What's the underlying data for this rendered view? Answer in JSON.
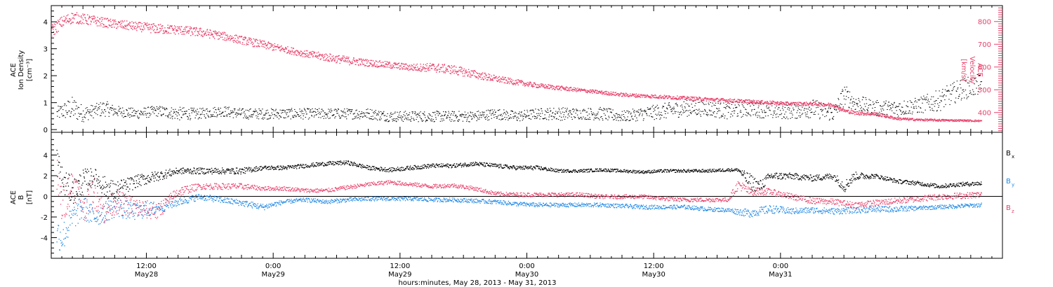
{
  "colors": {
    "axis": "#000000",
    "density": "#000000",
    "velocity": "#e8406a",
    "bx": "#000000",
    "by": "#1e88e5",
    "bz": "#e8406a"
  },
  "chart_data": [
    {
      "type": "scatter",
      "panel": "top",
      "ylabel_left": [
        "ACE",
        "Ion Density",
        "[cm⁻³]"
      ],
      "ylabel_right": [
        "ACE",
        "Velocity",
        "[km/s]"
      ],
      "y_left_ticks": [
        "0",
        "1",
        "2",
        "3",
        "4"
      ],
      "y_left_range": [
        -0.1,
        4.6
      ],
      "y_right_ticks": [
        "400",
        "500",
        "600",
        "700",
        "800"
      ],
      "y_right_range": [
        313,
        870
      ],
      "x_range_hours": [
        0,
        90
      ],
      "series": [
        {
          "name": "Ion Density",
          "axis": "left",
          "color": "#000000",
          "x": [
            0.5,
            1,
            2,
            3,
            4,
            5,
            6,
            8,
            10,
            12,
            14,
            16,
            18,
            20,
            22,
            24,
            26,
            28,
            30,
            32,
            34,
            36,
            38,
            40,
            42,
            44,
            46,
            48,
            50,
            52,
            54,
            56,
            58,
            60,
            62,
            64,
            66,
            68,
            70,
            72,
            74,
            75,
            76,
            78,
            80,
            82,
            84,
            86,
            88
          ],
          "y": [
            0.6,
            0.7,
            0.8,
            0.6,
            0.7,
            0.8,
            0.7,
            0.6,
            0.7,
            0.6,
            0.6,
            0.7,
            0.6,
            0.6,
            0.6,
            0.6,
            0.6,
            0.6,
            0.6,
            0.5,
            0.5,
            0.5,
            0.5,
            0.5,
            0.6,
            0.5,
            0.6,
            0.6,
            0.6,
            0.6,
            0.5,
            0.6,
            0.7,
            0.8,
            0.8,
            0.7,
            0.8,
            0.7,
            0.7,
            0.8,
            0.6,
            1.3,
            1.0,
            0.8,
            0.8,
            0.9,
            1.1,
            1.5,
            1.7
          ],
          "spread": [
            0.25,
            0.3,
            0.45,
            0.3,
            0.25,
            0.3,
            0.2,
            0.2,
            0.2,
            0.25,
            0.2,
            0.2,
            0.2,
            0.2,
            0.2,
            0.2,
            0.2,
            0.2,
            0.2,
            0.2,
            0.2,
            0.2,
            0.2,
            0.2,
            0.2,
            0.2,
            0.2,
            0.25,
            0.2,
            0.25,
            0.2,
            0.25,
            0.3,
            0.3,
            0.3,
            0.3,
            0.3,
            0.3,
            0.3,
            0.35,
            0.3,
            0.4,
            0.3,
            0.3,
            0.3,
            0.3,
            0.4,
            0.4,
            0.4
          ]
        },
        {
          "name": "Velocity",
          "axis": "right",
          "color": "#e8406a",
          "x": [
            0,
            1,
            2,
            4,
            6,
            8,
            10,
            12,
            14,
            16,
            18,
            20,
            22,
            24,
            26,
            28,
            30,
            32,
            34,
            36,
            38,
            40,
            42,
            44,
            46,
            48,
            50,
            52,
            54,
            56,
            58,
            60,
            62,
            64,
            66,
            68,
            70,
            72,
            74,
            75,
            76,
            78,
            80,
            82,
            84,
            86,
            88
          ],
          "y": [
            760,
            800,
            820,
            805,
            790,
            780,
            770,
            765,
            755,
            740,
            720,
            700,
            680,
            660,
            645,
            630,
            620,
            610,
            600,
            600,
            590,
            570,
            550,
            535,
            520,
            510,
            500,
            490,
            480,
            475,
            470,
            465,
            460,
            455,
            450,
            445,
            440,
            440,
            435,
            410,
            400,
            395,
            375,
            370,
            368,
            367,
            365
          ],
          "spread": [
            30,
            25,
            25,
            22,
            20,
            20,
            22,
            20,
            20,
            18,
            18,
            18,
            15,
            15,
            18,
            18,
            15,
            15,
            15,
            20,
            20,
            18,
            15,
            12,
            10,
            10,
            8,
            8,
            8,
            8,
            8,
            8,
            8,
            8,
            8,
            8,
            8,
            8,
            8,
            8,
            8,
            8,
            6,
            5,
            5,
            4,
            4
          ]
        }
      ]
    },
    {
      "type": "scatter",
      "panel": "bottom",
      "ylabel": [
        "ACE",
        "B",
        "[nT]"
      ],
      "y_ticks": [
        "-4",
        "-2",
        "0",
        "2",
        "4"
      ],
      "y_range": [
        -6.0,
        6.2
      ],
      "x_range_hours": [
        0,
        90
      ],
      "zero_line": true,
      "legend": [
        "Bx",
        "By",
        "Bz"
      ],
      "series": [
        {
          "name": "Bx",
          "color": "#000000",
          "x": [
            0.5,
            1,
            2,
            3,
            4,
            5,
            6,
            8,
            10,
            12,
            14,
            16,
            18,
            20,
            22,
            24,
            26,
            28,
            30,
            32,
            34,
            36,
            38,
            40,
            42,
            44,
            46,
            48,
            50,
            52,
            54,
            56,
            58,
            60,
            62,
            64,
            65,
            66,
            67,
            68,
            70,
            72,
            74,
            75,
            76,
            78,
            80,
            82,
            84,
            86,
            88
          ],
          "y": [
            3.5,
            1.5,
            0.5,
            1.5,
            2.0,
            1.0,
            0.5,
            1.5,
            2.0,
            2.5,
            2.5,
            2.5,
            2.5,
            2.8,
            2.8,
            3.0,
            3.2,
            3.3,
            2.8,
            2.6,
            2.8,
            3.0,
            3.0,
            3.2,
            3.0,
            2.8,
            2.8,
            2.5,
            2.5,
            2.6,
            2.5,
            2.4,
            2.5,
            2.5,
            2.5,
            2.6,
            2.6,
            1.5,
            1.0,
            2.0,
            2.0,
            1.8,
            2.0,
            1.0,
            2.0,
            2.0,
            1.5,
            1.3,
            1.0,
            1.2,
            1.3
          ],
          "spread": [
            1.5,
            1.5,
            1.2,
            1.2,
            0.8,
            1.0,
            1.0,
            0.6,
            0.5,
            0.3,
            0.3,
            0.3,
            0.3,
            0.2,
            0.2,
            0.2,
            0.2,
            0.2,
            0.2,
            0.2,
            0.2,
            0.2,
            0.2,
            0.2,
            0.2,
            0.2,
            0.2,
            0.15,
            0.15,
            0.15,
            0.15,
            0.15,
            0.15,
            0.15,
            0.15,
            0.15,
            0.15,
            0.8,
            0.6,
            0.4,
            0.3,
            0.3,
            0.3,
            0.6,
            0.4,
            0.2,
            0.2,
            0.2,
            0.2,
            0.2,
            0.2
          ]
        },
        {
          "name": "By",
          "color": "#1e88e5",
          "x": [
            0.5,
            1,
            2,
            3,
            4,
            5,
            6,
            8,
            10,
            12,
            14,
            16,
            18,
            20,
            22,
            24,
            26,
            28,
            30,
            32,
            34,
            36,
            38,
            40,
            42,
            44,
            46,
            48,
            50,
            52,
            54,
            56,
            58,
            60,
            62,
            64,
            66,
            68,
            70,
            72,
            74,
            76,
            78,
            80,
            82,
            84,
            86,
            88
          ],
          "y": [
            -3.5,
            -4.0,
            -2.0,
            -1.0,
            -2.0,
            -1.5,
            -1.0,
            -1.5,
            -1.0,
            -0.5,
            0.0,
            -0.3,
            -0.6,
            -1.0,
            -0.5,
            -0.3,
            -0.5,
            -0.3,
            -0.2,
            -0.2,
            -0.2,
            -0.3,
            -0.3,
            -0.4,
            -0.5,
            -0.7,
            -0.8,
            -0.8,
            -0.8,
            -0.8,
            -0.9,
            -1.0,
            -1.0,
            -1.0,
            -1.2,
            -1.3,
            -1.6,
            -1.2,
            -1.4,
            -1.3,
            -1.4,
            -1.3,
            -1.2,
            -1.2,
            -1.1,
            -1.0,
            -0.9,
            -0.8
          ],
          "spread": [
            1.5,
            1.5,
            1.2,
            1.2,
            1.0,
            1.0,
            1.0,
            0.8,
            0.6,
            0.4,
            0.3,
            0.3,
            0.3,
            0.3,
            0.2,
            0.2,
            0.2,
            0.2,
            0.2,
            0.2,
            0.2,
            0.2,
            0.2,
            0.2,
            0.2,
            0.2,
            0.2,
            0.2,
            0.2,
            0.2,
            0.2,
            0.2,
            0.2,
            0.2,
            0.2,
            0.2,
            0.4,
            0.4,
            0.3,
            0.3,
            0.3,
            0.3,
            0.3,
            0.3,
            0.2,
            0.2,
            0.2,
            0.2
          ]
        },
        {
          "name": "Bz",
          "color": "#e8406a",
          "x": [
            0.5,
            1,
            2,
            3,
            4,
            5,
            6,
            8,
            10,
            12,
            14,
            16,
            18,
            20,
            22,
            24,
            26,
            28,
            30,
            32,
            34,
            36,
            38,
            40,
            42,
            44,
            46,
            48,
            50,
            52,
            54,
            56,
            58,
            60,
            62,
            64,
            65,
            66,
            68,
            70,
            72,
            74,
            76,
            78,
            80,
            82,
            84,
            86,
            88
          ],
          "y": [
            2.0,
            -1.0,
            1.5,
            -1.0,
            0.5,
            -1.5,
            -0.5,
            -1.0,
            -1.5,
            0.5,
            1.0,
            1.0,
            1.0,
            0.8,
            0.8,
            0.6,
            0.6,
            0.9,
            1.2,
            1.4,
            1.2,
            1.0,
            1.1,
            0.8,
            0.3,
            0.2,
            0.2,
            0.2,
            0.2,
            0.0,
            0.0,
            0.0,
            -0.2,
            -0.3,
            -0.3,
            -0.3,
            1.2,
            0.5,
            0.5,
            0.0,
            -0.4,
            -0.5,
            -0.8,
            -0.6,
            -0.4,
            -0.2,
            0.0,
            0.1,
            0.2
          ],
          "spread": [
            2.0,
            2.0,
            1.5,
            1.5,
            1.5,
            1.2,
            1.2,
            1.0,
            0.8,
            0.5,
            0.3,
            0.3,
            0.3,
            0.2,
            0.2,
            0.2,
            0.2,
            0.2,
            0.2,
            0.2,
            0.2,
            0.2,
            0.2,
            0.2,
            0.2,
            0.2,
            0.2,
            0.2,
            0.2,
            0.2,
            0.2,
            0.2,
            0.2,
            0.2,
            0.2,
            0.2,
            0.5,
            0.4,
            0.3,
            0.3,
            0.3,
            0.3,
            0.3,
            0.3,
            0.3,
            0.3,
            0.3,
            0.3,
            0.3
          ]
        }
      ]
    }
  ],
  "x_axis": {
    "range_hours": [
      0,
      90
    ],
    "major_ticks": [
      {
        "hour": 9,
        "time": "12:00",
        "date": "May28"
      },
      {
        "hour": 21,
        "time": "0:00",
        "date": "May29"
      },
      {
        "hour": 33,
        "time": "12:00",
        "date": "May29"
      },
      {
        "hour": 45,
        "time": "0:00",
        "date": "May30"
      },
      {
        "hour": 57,
        "time": "12:00",
        "date": "May30"
      },
      {
        "hour": 69,
        "time": "0:00",
        "date": "May31"
      }
    ],
    "label": "hours:minutes, May 28, 2013 - May 31, 2013"
  },
  "legend_labels": {
    "bx_main": "B",
    "bx_sub": "x",
    "by_main": "B",
    "by_sub": "y",
    "bz_main": "B",
    "bz_sub": "z"
  },
  "density_label_1": "ACE",
  "density_label_2": "Ion Density",
  "density_label_3": "[cm⁻³]",
  "velocity_label_1": "ACE",
  "velocity_label_2": "Velocity",
  "velocity_label_3": "[km/s]",
  "b_label_1": "ACE",
  "b_label_2": "B",
  "b_label_3": "[nT]"
}
